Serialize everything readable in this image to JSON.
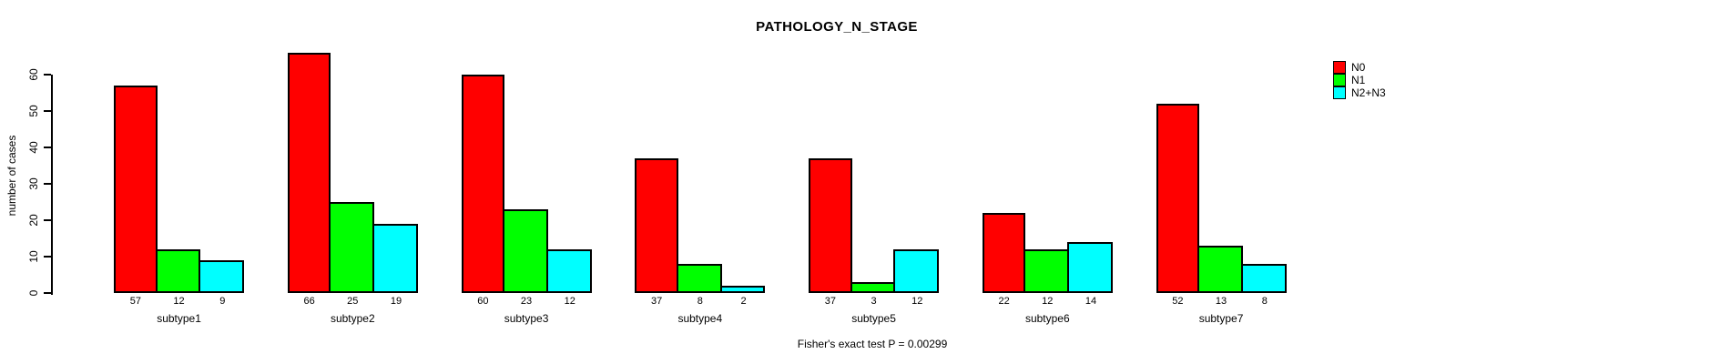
{
  "chart_data": {
    "type": "bar",
    "title": "PATHOLOGY_N_STAGE",
    "ylabel": "number of cases",
    "xlabel": "",
    "footnote": "Fisher's exact test P = 0.00299",
    "categories": [
      "subtype1",
      "subtype2",
      "subtype3",
      "subtype4",
      "subtype5",
      "subtype6",
      "subtype7"
    ],
    "series": [
      {
        "name": "N0",
        "color": "#ff0000",
        "values": [
          57,
          66,
          60,
          37,
          37,
          22,
          52
        ]
      },
      {
        "name": "N1",
        "color": "#00ff00",
        "values": [
          12,
          25,
          23,
          8,
          3,
          12,
          13
        ]
      },
      {
        "name": "N2+N3",
        "color": "#00ffff",
        "values": [
          9,
          19,
          12,
          2,
          12,
          14,
          8
        ]
      }
    ],
    "yticks": [
      0,
      10,
      20,
      30,
      40,
      50,
      60
    ],
    "ylim": [
      0,
      66
    ],
    "grid": false,
    "legend_position": "top-right",
    "bar_value_labels_shown": true,
    "colors": {
      "background": "#ffffff",
      "axis": "#000000",
      "text": "#000000"
    }
  }
}
